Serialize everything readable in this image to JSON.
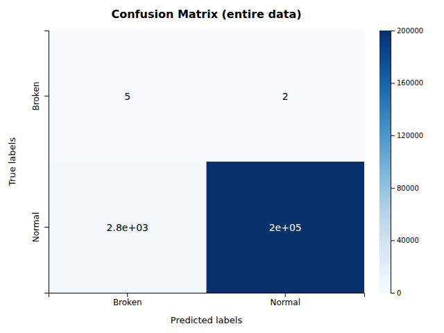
{
  "chart_data": {
    "type": "heatmap",
    "title": "Confusion Matrix (entire data)",
    "xlabel": "Predicted labels",
    "ylabel": "True labels",
    "categories": [
      "Broken",
      "Normal"
    ],
    "values": [
      [
        5,
        2
      ],
      [
        2800,
        200000
      ]
    ],
    "data_labels": true,
    "value_labels": [
      [
        "5",
        "2"
      ],
      [
        "2.8e+03",
        "2e+05"
      ]
    ],
    "colorbar_range": [
      0,
      200000
    ],
    "colorbar_ticks": [
      0,
      40000,
      80000,
      120000,
      160000,
      200000
    ]
  }
}
